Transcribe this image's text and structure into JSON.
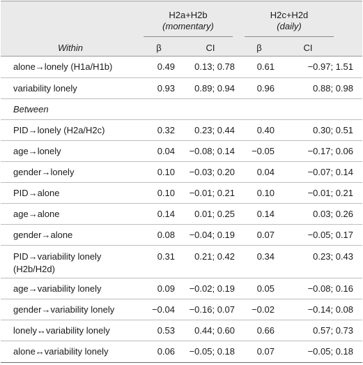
{
  "header": {
    "group1_title": "H2a+H2b",
    "group1_sub": "(momentary)",
    "group2_title": "H2c+H2d",
    "group2_sub": "(daily)",
    "col_within": "Within",
    "col_beta1": "β",
    "col_ci1": "CI",
    "col_beta2": "β",
    "col_ci2": "CI"
  },
  "rows": [
    {
      "label": "alone→lonely (H1a/H1b)",
      "b1": "0.49",
      "ci1": "0.13; 0.78",
      "b2": "0.61",
      "ci2": "−0.97; 1.51"
    },
    {
      "label": "variability lonely",
      "b1": "0.93",
      "ci1": "0.89; 0.94",
      "b2": "0.96",
      "ci2": "0.88; 0.98"
    },
    {
      "label": "Between",
      "b1": "",
      "ci1": "",
      "b2": "",
      "ci2": ""
    },
    {
      "label": "PID→lonely (H2a/H2c)",
      "b1": "0.32",
      "ci1": "0.23; 0.44",
      "b2": "0.40",
      "ci2": "0.30; 0.51"
    },
    {
      "label": "age→lonely",
      "b1": "0.04",
      "ci1": "−0.08; 0.14",
      "b2": "−0.05",
      "ci2": "−0.17; 0.06"
    },
    {
      "label": "gender→lonely",
      "b1": "0.10",
      "ci1": "−0.03; 0.20",
      "b2": "0.04",
      "ci2": "−0.07; 0.14"
    },
    {
      "label": "PID→alone",
      "b1": "0.10",
      "ci1": "−0.01; 0.21",
      "b2": "0.10",
      "ci2": "−0.01; 0.21"
    },
    {
      "label": "age→alone",
      "b1": "0.14",
      "ci1": "0.01; 0.25",
      "b2": "0.14",
      "ci2": "0.03; 0.26"
    },
    {
      "label": "gender→alone",
      "b1": "0.08",
      "ci1": "−0.04; 0.19",
      "b2": "0.07",
      "ci2": "−0.05; 0.17"
    },
    {
      "label": "PID→variability lonely",
      "label2": "(H2b/H2d)",
      "b1": "0.31",
      "ci1": "0.21; 0.42",
      "b2": "0.34",
      "ci2": "0.23; 0.43"
    },
    {
      "label": "age→variability lonely",
      "b1": "0.09",
      "ci1": "−0.02; 0.19",
      "b2": "0.05",
      "ci2": "−0.08; 0.16"
    },
    {
      "label": "gender→variability lonely",
      "b1": "−0.04",
      "ci1": "−0.16; 0.07",
      "b2": "−0.02",
      "ci2": "−0.14; 0.08"
    },
    {
      "label": "lonely↔variability lonely",
      "b1": "0.53",
      "ci1": "0.44; 0.60",
      "b2": "0.66",
      "ci2": "0.57; 0.73"
    },
    {
      "label": "alone↔variability lonely",
      "b1": "0.06",
      "ci1": "−0.05; 0.18",
      "b2": "0.07",
      "ci2": "−0.05; 0.18"
    }
  ]
}
